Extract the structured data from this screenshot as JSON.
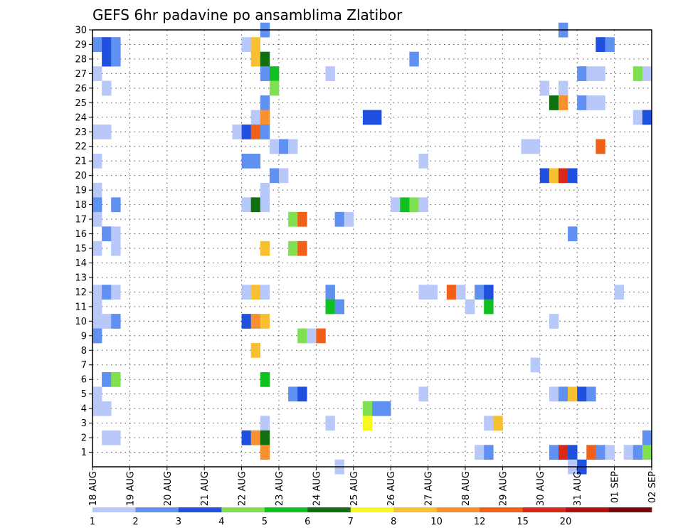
{
  "chart_data": {
    "type": "heatmap",
    "title": "GEFS 6hr padavine po ansamblima Zlatibor",
    "y_ticks": [
      "1",
      "2",
      "3",
      "4",
      "5",
      "6",
      "7",
      "8",
      "9",
      "10",
      "11",
      "12",
      "13",
      "14",
      "15",
      "16",
      "17",
      "18",
      "19",
      "20",
      "21",
      "22",
      "23",
      "24",
      "25",
      "26",
      "27",
      "28",
      "29",
      "30"
    ],
    "x_ticks": [
      "18 AUG",
      "19 AUG",
      "20 AUG",
      "21 AUG",
      "22 AUG",
      "23 AUG",
      "24 AUG",
      "25 AUG",
      "26 AUG",
      "27 AUG",
      "28 AUG",
      "29 AUG",
      "30 AUG",
      "31 AUG",
      "01 SEP",
      "02 SEP"
    ],
    "x_unit": "6-hour step from 18 AUG 00 UTC",
    "xlim": [
      0,
      60
    ],
    "ylim": [
      0,
      30
    ],
    "grid": true,
    "colorbar": {
      "labels": [
        "1",
        "2",
        "3",
        "4",
        "5",
        "6",
        "7",
        "8",
        "10",
        "12",
        "15",
        "20"
      ],
      "colors": [
        "#b8c8f8",
        "#6090f0",
        "#2050e0",
        "#80e050",
        "#10c020",
        "#107010",
        "#f8f820",
        "#f8c030",
        "#f89030",
        "#f06018",
        "#d82818",
        "#b01010",
        "#780808"
      ]
    },
    "cells": [
      {
        "y": 30,
        "x": 18,
        "c": 2
      },
      {
        "y": 30,
        "x": 50,
        "c": 2
      },
      {
        "y": 29,
        "x": 0,
        "c": 2
      },
      {
        "y": 29,
        "x": 1,
        "c": 3
      },
      {
        "y": 29,
        "x": 2,
        "c": 2
      },
      {
        "y": 29,
        "x": 16,
        "c": 1
      },
      {
        "y": 29,
        "x": 17,
        "c": 8
      },
      {
        "y": 29,
        "x": 54,
        "c": 3
      },
      {
        "y": 29,
        "x": 55,
        "c": 2
      },
      {
        "y": 28,
        "x": 1,
        "c": 3
      },
      {
        "y": 28,
        "x": 2,
        "c": 2
      },
      {
        "y": 28,
        "x": 17,
        "c": 8
      },
      {
        "y": 28,
        "x": 18,
        "c": 6
      },
      {
        "y": 28,
        "x": 34,
        "c": 2
      },
      {
        "y": 27,
        "x": 0,
        "c": 1
      },
      {
        "y": 27,
        "x": 18,
        "c": 2
      },
      {
        "y": 27,
        "x": 19,
        "c": 5
      },
      {
        "y": 27,
        "x": 25,
        "c": 1
      },
      {
        "y": 27,
        "x": 52,
        "c": 2
      },
      {
        "y": 27,
        "x": 53,
        "c": 1
      },
      {
        "y": 27,
        "x": 54,
        "c": 1
      },
      {
        "y": 27,
        "x": 58,
        "c": 4
      },
      {
        "y": 27,
        "x": 59,
        "c": 1
      },
      {
        "y": 26,
        "x": 1,
        "c": 1
      },
      {
        "y": 26,
        "x": 19,
        "c": 4
      },
      {
        "y": 26,
        "x": 48,
        "c": 1
      },
      {
        "y": 26,
        "x": 50,
        "c": 1
      },
      {
        "y": 25,
        "x": 18,
        "c": 2
      },
      {
        "y": 25,
        "x": 49,
        "c": 6
      },
      {
        "y": 25,
        "x": 50,
        "c": 9
      },
      {
        "y": 25,
        "x": 52,
        "c": 2
      },
      {
        "y": 25,
        "x": 53,
        "c": 1
      },
      {
        "y": 25,
        "x": 54,
        "c": 1
      },
      {
        "y": 24,
        "x": 17,
        "c": 1
      },
      {
        "y": 24,
        "x": 18,
        "c": 9
      },
      {
        "y": 24,
        "x": 29,
        "c": 3
      },
      {
        "y": 24,
        "x": 30,
        "c": 3
      },
      {
        "y": 24,
        "x": 58,
        "c": 1
      },
      {
        "y": 24,
        "x": 59,
        "c": 3
      },
      {
        "y": 23,
        "x": 0,
        "c": 1
      },
      {
        "y": 23,
        "x": 1,
        "c": 1
      },
      {
        "y": 23,
        "x": 15,
        "c": 1
      },
      {
        "y": 23,
        "x": 16,
        "c": 3
      },
      {
        "y": 23,
        "x": 17,
        "c": 10
      },
      {
        "y": 23,
        "x": 18,
        "c": 2
      },
      {
        "y": 22,
        "x": 19,
        "c": 1
      },
      {
        "y": 22,
        "x": 20,
        "c": 2
      },
      {
        "y": 22,
        "x": 21,
        "c": 1
      },
      {
        "y": 22,
        "x": 46,
        "c": 1
      },
      {
        "y": 22,
        "x": 47,
        "c": 1
      },
      {
        "y": 22,
        "x": 54,
        "c": 10
      },
      {
        "y": 21,
        "x": 0,
        "c": 1
      },
      {
        "y": 21,
        "x": 16,
        "c": 2
      },
      {
        "y": 21,
        "x": 17,
        "c": 2
      },
      {
        "y": 21,
        "x": 35,
        "c": 1
      },
      {
        "y": 20,
        "x": 19,
        "c": 2
      },
      {
        "y": 20,
        "x": 20,
        "c": 1
      },
      {
        "y": 20,
        "x": 48,
        "c": 3
      },
      {
        "y": 20,
        "x": 49,
        "c": 8
      },
      {
        "y": 20,
        "x": 50,
        "c": 11
      },
      {
        "y": 20,
        "x": 51,
        "c": 3
      },
      {
        "y": 19,
        "x": 0,
        "c": 1
      },
      {
        "y": 19,
        "x": 18,
        "c": 1
      },
      {
        "y": 18,
        "x": 0,
        "c": 2
      },
      {
        "y": 18,
        "x": 2,
        "c": 2
      },
      {
        "y": 18,
        "x": 16,
        "c": 1
      },
      {
        "y": 18,
        "x": 17,
        "c": 6
      },
      {
        "y": 18,
        "x": 18,
        "c": 1
      },
      {
        "y": 18,
        "x": 32,
        "c": 1
      },
      {
        "y": 18,
        "x": 33,
        "c": 5
      },
      {
        "y": 18,
        "x": 34,
        "c": 4
      },
      {
        "y": 18,
        "x": 35,
        "c": 1
      },
      {
        "y": 17,
        "x": 0,
        "c": 1
      },
      {
        "y": 17,
        "x": 21,
        "c": 4
      },
      {
        "y": 17,
        "x": 22,
        "c": 10
      },
      {
        "y": 17,
        "x": 26,
        "c": 2
      },
      {
        "y": 17,
        "x": 27,
        "c": 1
      },
      {
        "y": 16,
        "x": 1,
        "c": 2
      },
      {
        "y": 16,
        "x": 2,
        "c": 1
      },
      {
        "y": 16,
        "x": 51,
        "c": 2
      },
      {
        "y": 15,
        "x": 0,
        "c": 1
      },
      {
        "y": 15,
        "x": 2,
        "c": 1
      },
      {
        "y": 15,
        "x": 18,
        "c": 8
      },
      {
        "y": 15,
        "x": 21,
        "c": 4
      },
      {
        "y": 15,
        "x": 22,
        "c": 10
      },
      {
        "y": 12,
        "x": 0,
        "c": 1
      },
      {
        "y": 12,
        "x": 1,
        "c": 2
      },
      {
        "y": 12,
        "x": 2,
        "c": 1
      },
      {
        "y": 12,
        "x": 16,
        "c": 1
      },
      {
        "y": 12,
        "x": 17,
        "c": 8
      },
      {
        "y": 12,
        "x": 18,
        "c": 1
      },
      {
        "y": 12,
        "x": 25,
        "c": 2
      },
      {
        "y": 12,
        "x": 35,
        "c": 1
      },
      {
        "y": 12,
        "x": 36,
        "c": 1
      },
      {
        "y": 12,
        "x": 38,
        "c": 10
      },
      {
        "y": 12,
        "x": 39,
        "c": 1
      },
      {
        "y": 12,
        "x": 41,
        "c": 2
      },
      {
        "y": 12,
        "x": 42,
        "c": 3
      },
      {
        "y": 12,
        "x": 56,
        "c": 1
      },
      {
        "y": 11,
        "x": 0,
        "c": 1
      },
      {
        "y": 11,
        "x": 25,
        "c": 5
      },
      {
        "y": 11,
        "x": 26,
        "c": 2
      },
      {
        "y": 11,
        "x": 40,
        "c": 1
      },
      {
        "y": 11,
        "x": 42,
        "c": 5
      },
      {
        "y": 10,
        "x": 0,
        "c": 1
      },
      {
        "y": 10,
        "x": 1,
        "c": 1
      },
      {
        "y": 10,
        "x": 2,
        "c": 2
      },
      {
        "y": 10,
        "x": 16,
        "c": 3
      },
      {
        "y": 10,
        "x": 17,
        "c": 9
      },
      {
        "y": 10,
        "x": 18,
        "c": 8
      },
      {
        "y": 10,
        "x": 49,
        "c": 1
      },
      {
        "y": 9,
        "x": 0,
        "c": 2
      },
      {
        "y": 9,
        "x": 22,
        "c": 4
      },
      {
        "y": 9,
        "x": 23,
        "c": 1
      },
      {
        "y": 9,
        "x": 24,
        "c": 10
      },
      {
        "y": 8,
        "x": 17,
        "c": 8
      },
      {
        "y": 7,
        "x": 47,
        "c": 1
      },
      {
        "y": 6,
        "x": 1,
        "c": 2
      },
      {
        "y": 6,
        "x": 2,
        "c": 4
      },
      {
        "y": 6,
        "x": 18,
        "c": 5
      },
      {
        "y": 5,
        "x": 0,
        "c": 1
      },
      {
        "y": 5,
        "x": 21,
        "c": 2
      },
      {
        "y": 5,
        "x": 22,
        "c": 3
      },
      {
        "y": 5,
        "x": 35,
        "c": 1
      },
      {
        "y": 5,
        "x": 49,
        "c": 1
      },
      {
        "y": 5,
        "x": 50,
        "c": 2
      },
      {
        "y": 5,
        "x": 51,
        "c": 8
      },
      {
        "y": 5,
        "x": 52,
        "c": 3
      },
      {
        "y": 5,
        "x": 53,
        "c": 2
      },
      {
        "y": 4,
        "x": 0,
        "c": 1
      },
      {
        "y": 4,
        "x": 1,
        "c": 1
      },
      {
        "y": 4,
        "x": 29,
        "c": 4
      },
      {
        "y": 4,
        "x": 30,
        "c": 2
      },
      {
        "y": 4,
        "x": 31,
        "c": 2
      },
      {
        "y": 3,
        "x": 18,
        "c": 1
      },
      {
        "y": 3,
        "x": 25,
        "c": 1
      },
      {
        "y": 3,
        "x": 29,
        "c": 7
      },
      {
        "y": 3,
        "x": 42,
        "c": 1
      },
      {
        "y": 3,
        "x": 43,
        "c": 8
      },
      {
        "y": 2,
        "x": 1,
        "c": 1
      },
      {
        "y": 2,
        "x": 2,
        "c": 1
      },
      {
        "y": 2,
        "x": 16,
        "c": 3
      },
      {
        "y": 2,
        "x": 17,
        "c": 9
      },
      {
        "y": 2,
        "x": 18,
        "c": 6
      },
      {
        "y": 2,
        "x": 59,
        "c": 2
      },
      {
        "y": 1,
        "x": 18,
        "c": 9
      },
      {
        "y": 1,
        "x": 41,
        "c": 1
      },
      {
        "y": 1,
        "x": 42,
        "c": 2
      },
      {
        "y": 1,
        "x": 49,
        "c": 2
      },
      {
        "y": 1,
        "x": 50,
        "c": 11
      },
      {
        "y": 1,
        "x": 51,
        "c": 3
      },
      {
        "y": 1,
        "x": 53,
        "c": 10
      },
      {
        "y": 1,
        "x": 54,
        "c": 2
      },
      {
        "y": 1,
        "x": 55,
        "c": 1
      },
      {
        "y": 1,
        "x": 57,
        "c": 1
      },
      {
        "y": 1,
        "x": 58,
        "c": 2
      },
      {
        "y": 1,
        "x": 59,
        "c": 4
      },
      {
        "y": 0,
        "x": 26,
        "c": 1
      },
      {
        "y": 0,
        "x": 51,
        "c": 1
      },
      {
        "y": 0,
        "x": 52,
        "c": 3
      }
    ]
  }
}
